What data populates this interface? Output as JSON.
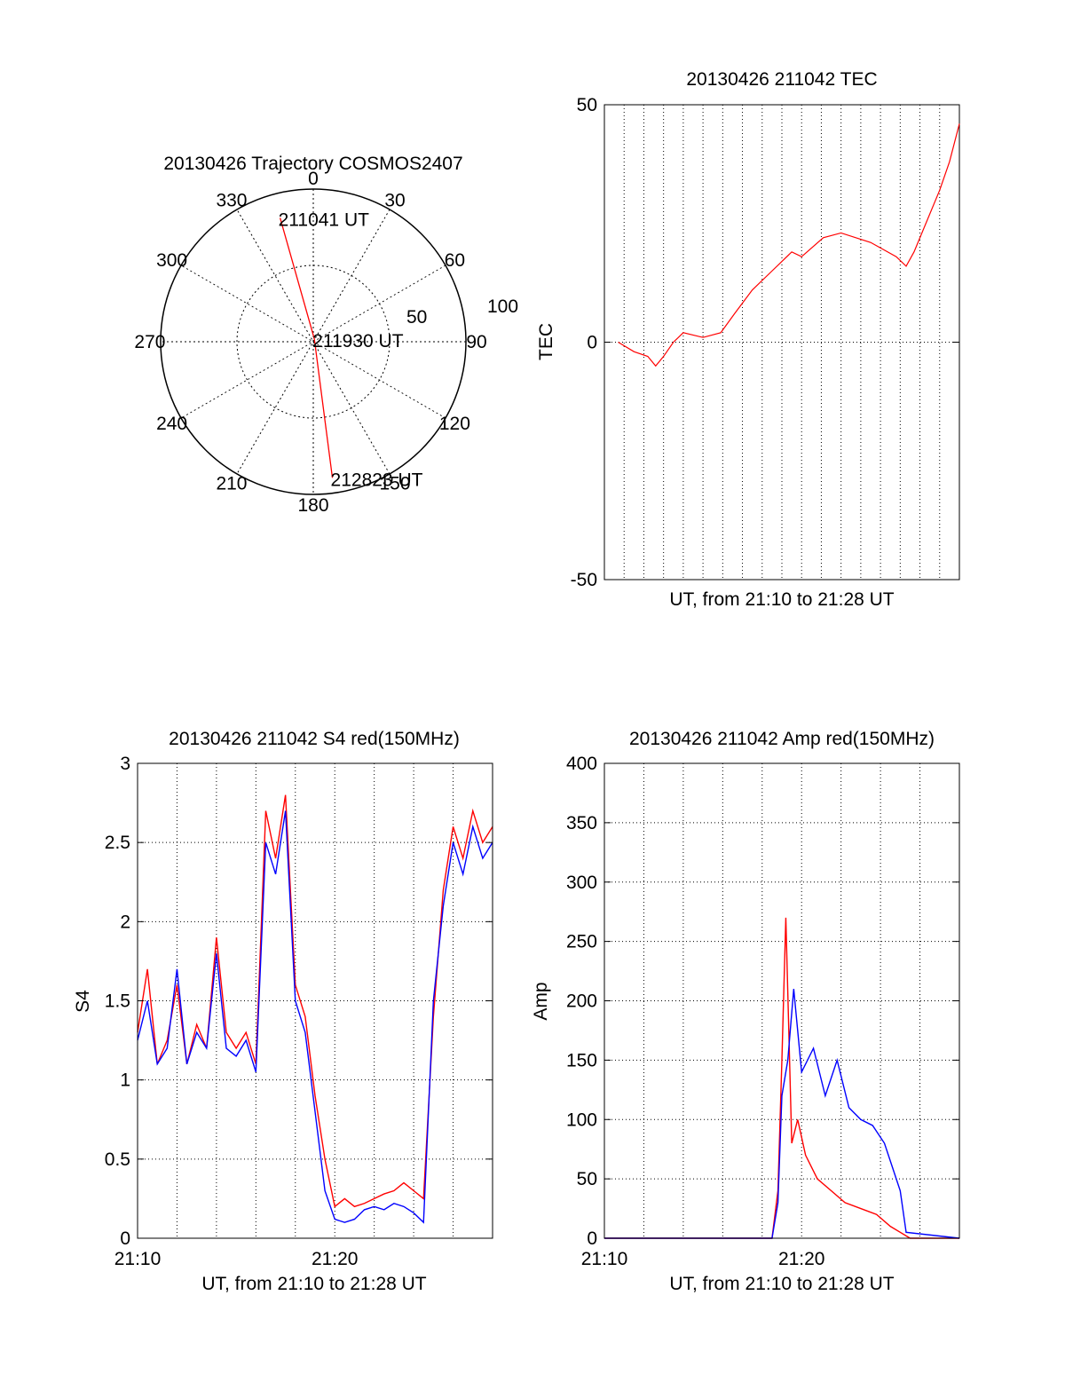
{
  "colors": {
    "primary": "#ff0000",
    "secondary": "#0000ff",
    "axis": "#000000",
    "grid": "#000000"
  },
  "chart_data": [
    {
      "type": "polar",
      "title": "20130426 Trajectory COSMOS2407",
      "grid": true,
      "radial_range": [
        0,
        100
      ],
      "radial_ticks": [
        "50",
        "100"
      ],
      "angle_labels": [
        "0",
        "30",
        "60",
        "90",
        "120",
        "150",
        "180",
        "210",
        "240",
        "270",
        "300",
        "330"
      ],
      "series": [
        {
          "points": [
            {
              "az": 345,
              "r": 84
            },
            {
              "az": 20,
              "r": 2
            },
            {
              "az": 172,
              "r": 90
            }
          ]
        }
      ],
      "annotations": [
        {
          "text": "211041 UT",
          "az": 345,
          "r": 84
        },
        {
          "text": "211930 UT",
          "az": 20,
          "r": 2
        },
        {
          "text": "212823 UT",
          "az": 172,
          "r": 90
        }
      ]
    },
    {
      "type": "line",
      "title": "20130426 211042 TEC",
      "xlabel": "UT, from 21:10 to 21:28 UT",
      "ylabel": "TEC",
      "xlim": [
        0,
        18
      ],
      "ylim": [
        -50,
        50
      ],
      "yticks": [
        "-50",
        "0",
        "50"
      ],
      "grid": true,
      "series": [
        {
          "x": [
            0.7,
            1.5,
            2.2,
            2.6,
            3.0,
            3.5,
            4.0,
            5.0,
            5.9,
            6.6,
            7.5,
            8.5,
            9.5,
            10.0,
            11.1,
            12.0,
            13.5,
            14.8,
            15.3,
            15.7,
            16.3,
            17.0,
            17.5,
            18.0
          ],
          "y": [
            0,
            -2,
            -3,
            -5,
            -3,
            0,
            2,
            1,
            2,
            6,
            11,
            15,
            19,
            18,
            22,
            23,
            21,
            18,
            16,
            19,
            25,
            32,
            38,
            46
          ]
        }
      ]
    },
    {
      "type": "line",
      "title": "20130426 211042 S4 red(150MHz)",
      "xlabel": "UT, from 21:10 to 21:28 UT",
      "ylabel": "S4",
      "xlim": [
        0,
        18
      ],
      "ylim": [
        0,
        3
      ],
      "xticks": [
        {
          "v": 0,
          "label": "21:10"
        },
        {
          "v": 10,
          "label": "21:20"
        }
      ],
      "yticks": [
        "0",
        "0.5",
        "1",
        "1.5",
        "2",
        "2.5",
        "3"
      ],
      "grid": true,
      "series": [
        {
          "x": [
            0,
            0.5,
            1,
            1.5,
            2,
            2.5,
            3,
            3.5,
            4,
            4.5,
            5,
            5.5,
            6,
            6.5,
            7,
            7.5,
            8,
            8.5,
            9,
            9.5,
            10,
            10.5,
            11,
            11.5,
            12,
            12.5,
            13,
            13.5,
            14,
            14.5,
            15,
            15.5,
            16,
            16.5,
            17,
            17.5,
            18
          ],
          "y": [
            1.3,
            1.7,
            1.1,
            1.25,
            1.6,
            1.1,
            1.35,
            1.2,
            1.9,
            1.3,
            1.2,
            1.3,
            1.1,
            2.7,
            2.4,
            2.8,
            1.6,
            1.4,
            0.9,
            0.5,
            0.2,
            0.25,
            0.2,
            0.22,
            0.25,
            0.28,
            0.3,
            0.35,
            0.3,
            0.25,
            1.4,
            2.2,
            2.6,
            2.4,
            2.7,
            2.5,
            2.6
          ]
        },
        {
          "x": [
            0,
            0.5,
            1,
            1.5,
            2,
            2.5,
            3,
            3.5,
            4,
            4.5,
            5,
            5.5,
            6,
            6.5,
            7,
            7.5,
            8,
            8.5,
            9,
            9.5,
            10,
            10.5,
            11,
            11.5,
            12,
            12.5,
            13,
            13.5,
            14,
            14.5,
            15,
            15.5,
            16,
            16.5,
            17,
            17.5,
            18
          ],
          "y": [
            1.25,
            1.5,
            1.1,
            1.2,
            1.7,
            1.1,
            1.3,
            1.2,
            1.8,
            1.2,
            1.15,
            1.25,
            1.05,
            2.5,
            2.3,
            2.7,
            1.5,
            1.3,
            0.8,
            0.3,
            0.12,
            0.1,
            0.12,
            0.18,
            0.2,
            0.18,
            0.22,
            0.2,
            0.16,
            0.1,
            1.5,
            2.1,
            2.5,
            2.3,
            2.6,
            2.4,
            2.5
          ]
        }
      ]
    },
    {
      "type": "line",
      "title": "20130426 211042 Amp red(150MHz)",
      "xlabel": "UT, from 21:10 to 21:28 UT",
      "ylabel": "Amp",
      "xlim": [
        0,
        18
      ],
      "ylim": [
        0,
        400
      ],
      "xticks": [
        {
          "v": 0,
          "label": "21:10"
        },
        {
          "v": 10,
          "label": "21:20"
        }
      ],
      "yticks": [
        "0",
        "50",
        "100",
        "150",
        "200",
        "250",
        "300",
        "350",
        "400"
      ],
      "grid": true,
      "series": [
        {
          "x": [
            0,
            8.5,
            8.8,
            9.0,
            9.2,
            9.5,
            9.8,
            10.2,
            10.8,
            11.5,
            12.2,
            13.0,
            13.8,
            14.5,
            15.0,
            15.5,
            18
          ],
          "y": [
            0,
            0,
            40,
            150,
            270,
            80,
            100,
            70,
            50,
            40,
            30,
            25,
            20,
            10,
            5,
            0,
            0
          ]
        },
        {
          "x": [
            0,
            8.5,
            8.8,
            9.0,
            9.3,
            9.6,
            10.0,
            10.6,
            11.2,
            11.8,
            12.4,
            13.0,
            13.6,
            14.2,
            14.6,
            15.0,
            15.3,
            18
          ],
          "y": [
            0,
            0,
            30,
            120,
            150,
            210,
            140,
            160,
            120,
            150,
            110,
            100,
            95,
            80,
            60,
            40,
            5,
            0
          ]
        }
      ]
    }
  ]
}
